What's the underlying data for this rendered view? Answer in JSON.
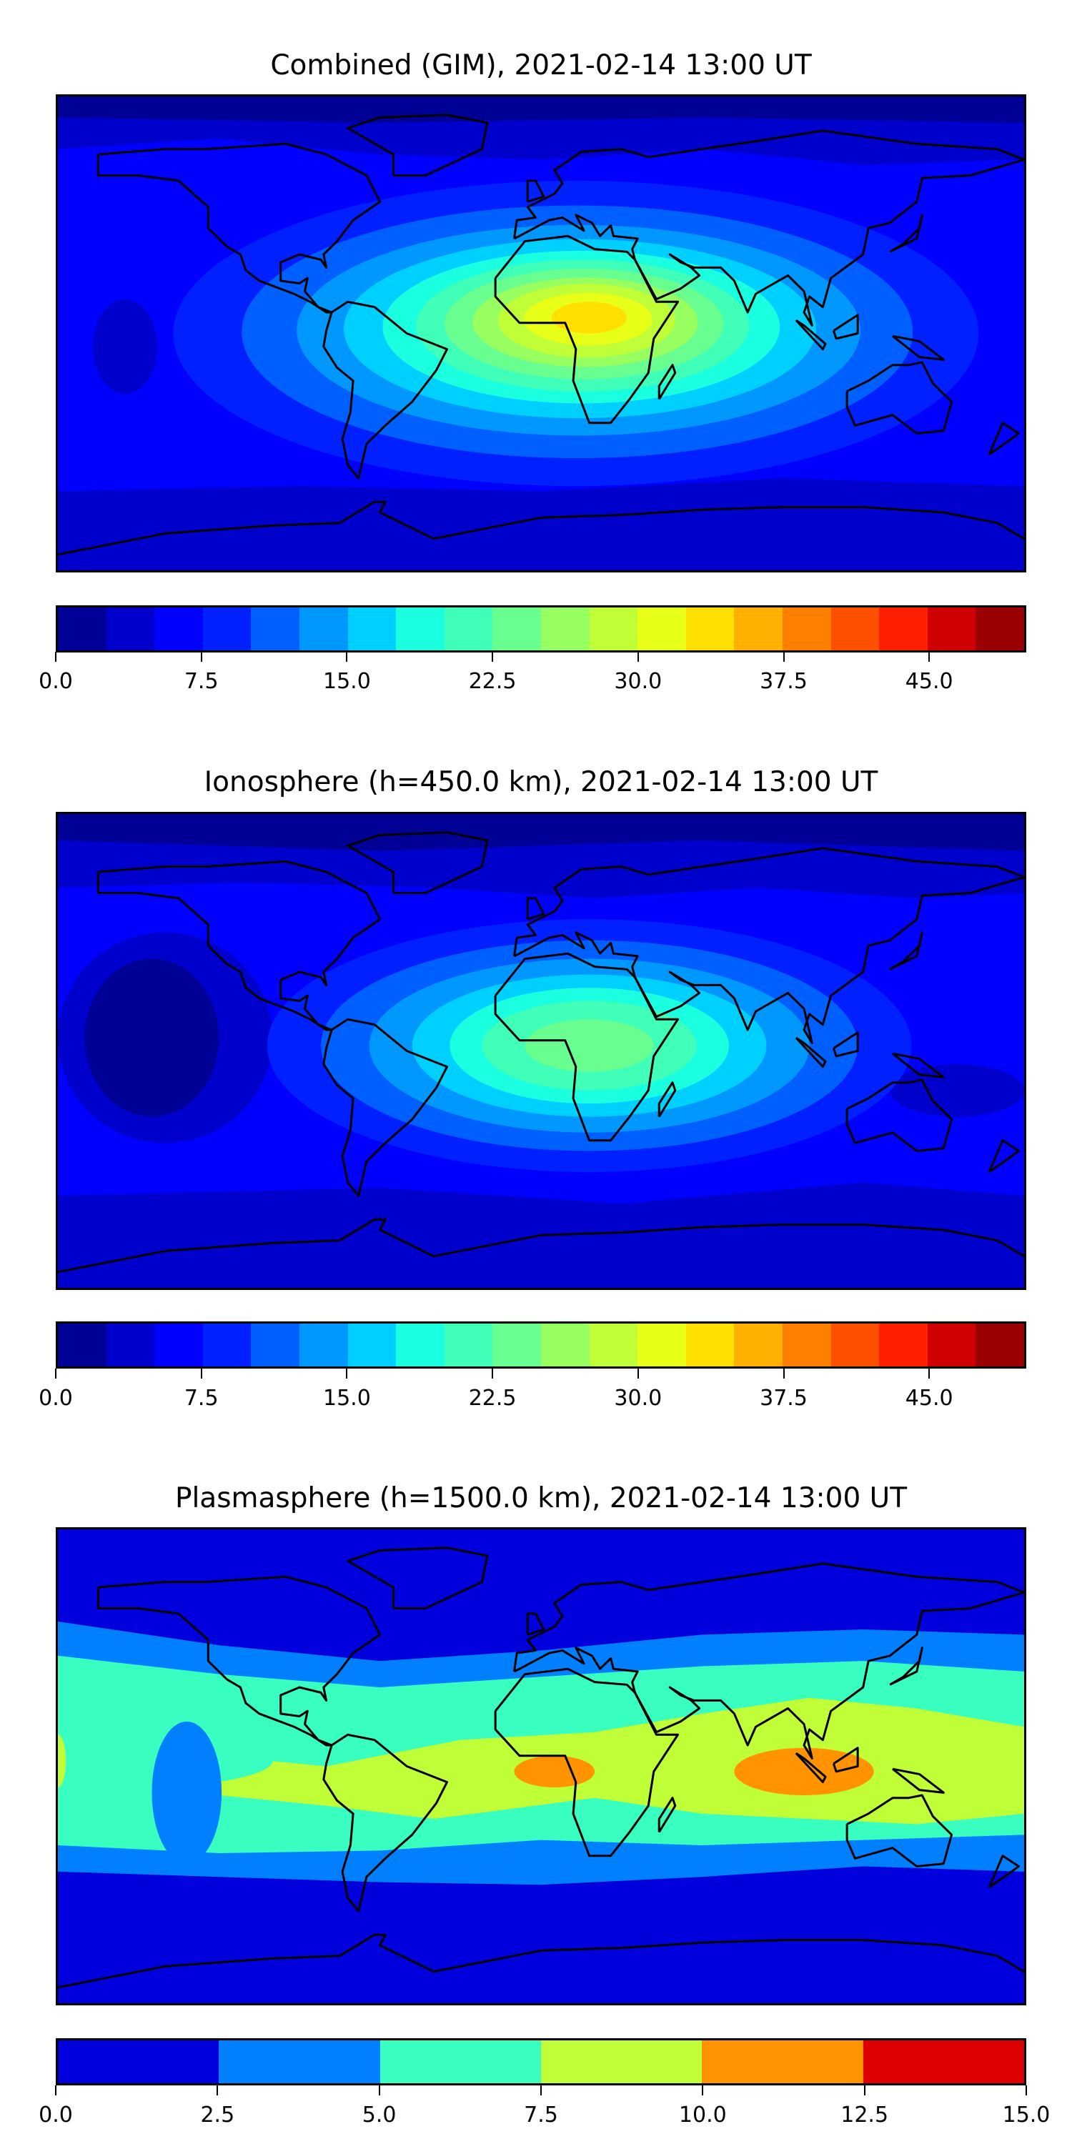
{
  "chart_data": [
    {
      "type": "heatmap",
      "title": "Combined (GIM), 2021-02-14 13:00 UT",
      "projection": "equirectangular",
      "colorbar": {
        "range": [
          0,
          50
        ],
        "step": 2.5,
        "ticks": [
          "0.0",
          "7.5",
          "15.0",
          "22.5",
          "30.0",
          "37.5",
          "45.0"
        ],
        "tick_values": [
          0,
          7.5,
          15,
          22.5,
          30,
          37.5,
          45
        ],
        "colors": [
          "#000096",
          "#0000cd",
          "#0000ff",
          "#0020ff",
          "#0060ff",
          "#0098ff",
          "#00d0ff",
          "#1affe0",
          "#40ffb8",
          "#68ff90",
          "#98ff60",
          "#c0ff38",
          "#e8ff18",
          "#ffe000",
          "#ffb000",
          "#ff8000",
          "#ff5000",
          "#ff2000",
          "#d00000",
          "#9a0000"
        ]
      },
      "max_level_shown": 32.5,
      "peak_region": "central Africa"
    },
    {
      "type": "heatmap",
      "title": "Ionosphere  (h=450.0 km), 2021-02-14 13:00 UT",
      "projection": "equirectangular",
      "colorbar": {
        "range": [
          0,
          50
        ],
        "step": 2.5,
        "ticks": [
          "0.0",
          "7.5",
          "15.0",
          "22.5",
          "30.0",
          "37.5",
          "45.0"
        ],
        "tick_values": [
          0,
          7.5,
          15,
          22.5,
          30,
          37.5,
          45
        ],
        "colors": [
          "#000096",
          "#0000cd",
          "#0000ff",
          "#0020ff",
          "#0060ff",
          "#0098ff",
          "#00d0ff",
          "#1affe0",
          "#40ffb8",
          "#68ff90",
          "#98ff60",
          "#c0ff38",
          "#e8ff18",
          "#ffe000",
          "#ffb000",
          "#ff8000",
          "#ff5000",
          "#ff2000",
          "#d00000",
          "#9a0000"
        ]
      },
      "max_level_shown": 25.0,
      "peak_region": "central/eastern Africa"
    },
    {
      "type": "heatmap",
      "title": "Plasmasphere (h=1500.0 km), 2021-02-14 13:00 UT",
      "projection": "equirectangular",
      "colorbar": {
        "range": [
          0,
          15
        ],
        "step": 2.5,
        "ticks": [
          "0.0",
          "2.5",
          "5.0",
          "7.5",
          "10.0",
          "12.5",
          "15.0"
        ],
        "tick_values": [
          0,
          2.5,
          5,
          7.5,
          10,
          12.5,
          15
        ],
        "colors": [
          "#0000dd",
          "#0080ff",
          "#38ffc0",
          "#c0ff38",
          "#ff9400",
          "#dd0000"
        ]
      },
      "max_level_shown": 12.5,
      "peak_region": "equatorial Atlantic/Africa and Indian Ocean"
    }
  ]
}
